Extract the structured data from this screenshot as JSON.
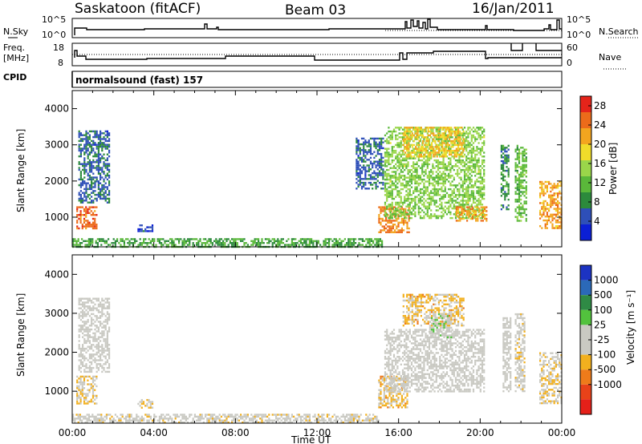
{
  "header": {
    "station": "Saskatoon (fitACF)",
    "beam": "Beam 03",
    "date": "16/Jan/2011"
  },
  "strips": {
    "nsky_label": "N.Sky",
    "nsearch_label": "N.Search",
    "nsky_ticks": [
      "10^5",
      "10^0"
    ],
    "nsearch_ticks": [
      "10^5",
      "10^0"
    ],
    "freq_label_1": "Freq.",
    "freq_label_2": "[MHz]",
    "freq_ticks": [
      "18",
      "8"
    ],
    "nave_label": "Nave",
    "nave_ticks": [
      "60",
      "0"
    ],
    "cpid_label": "CPID",
    "cpid_text": "normalsound (fast) 157"
  },
  "colors": {
    "power_scale": [
      "#0b1fd6",
      "#2e4fb8",
      "#2c8a3c",
      "#5ab83a",
      "#9ad64a",
      "#f0dc2a",
      "#f3a51f",
      "#ec6b1a",
      "#e5241a"
    ],
    "velocity_scale": [
      "#1c33c2",
      "#2b69b8",
      "#2f8a45",
      "#52c23d",
      "#c9c9c2",
      "#c9c9c2",
      "#f2b01e",
      "#ee7b1a",
      "#e84219",
      "#e52019"
    ]
  },
  "chart_data": [
    {
      "type": "heatmap",
      "name": "power",
      "ylabel": "Slant Range [km]",
      "ylim": [
        180,
        4500
      ],
      "yticks": [
        "1000",
        "2000",
        "3000",
        "4000"
      ],
      "xlim": [
        "00:00",
        "24:00"
      ],
      "colorbar_label": "Power [dB]",
      "colorbar_ticks": [
        "4",
        "8",
        "12",
        "16",
        "20",
        "24",
        "28"
      ],
      "colorbar_range": [
        0,
        30
      ],
      "regions": [
        {
          "t_start": 0.2,
          "t_end": 1.2,
          "r_start": 700,
          "r_end": 1300,
          "value": 25
        },
        {
          "t_start": 0.3,
          "t_end": 1.8,
          "r_start": 1400,
          "r_end": 3400,
          "value": 6
        },
        {
          "t_start": 3.2,
          "t_end": 3.9,
          "r_start": 600,
          "r_end": 800,
          "value": 5
        },
        {
          "t_start": 0,
          "t_end": 15.2,
          "r_start": 180,
          "r_end": 420,
          "value": 10
        },
        {
          "t_start": 13.9,
          "t_end": 15.2,
          "r_start": 1800,
          "r_end": 3200,
          "value": 6
        },
        {
          "t_start": 15.0,
          "t_end": 16.5,
          "r_start": 600,
          "r_end": 1300,
          "value": 24
        },
        {
          "t_start": 15.3,
          "t_end": 20.2,
          "r_start": 1000,
          "r_end": 3500,
          "value": 14
        },
        {
          "t_start": 16.2,
          "t_end": 19.2,
          "r_start": 2700,
          "r_end": 3500,
          "value": 20
        },
        {
          "t_start": 18.8,
          "t_end": 20.3,
          "r_start": 900,
          "r_end": 1300,
          "value": 22
        },
        {
          "t_start": 21.0,
          "t_end": 21.4,
          "r_start": 1200,
          "r_end": 3000,
          "value": 8
        },
        {
          "t_start": 21.7,
          "t_end": 22.3,
          "r_start": 900,
          "r_end": 3000,
          "value": 12
        },
        {
          "t_start": 22.9,
          "t_end": 24.0,
          "r_start": 700,
          "r_end": 2000,
          "value": 22
        }
      ]
    },
    {
      "type": "heatmap",
      "name": "velocity",
      "ylabel": "Slant Range [km]",
      "ylim": [
        180,
        4500
      ],
      "yticks": [
        "1000",
        "2000",
        "3000",
        "4000"
      ],
      "xlabel": "Time UT",
      "xticks": [
        "00:00",
        "04:00",
        "08:00",
        "12:00",
        "16:00",
        "20:00",
        "00:00"
      ],
      "xlim": [
        "00:00",
        "24:00"
      ],
      "colorbar_label": "Velocity [m s⁻¹]",
      "colorbar_ticks": [
        "1000",
        "500",
        "100",
        "25",
        "-25",
        "-100",
        "-500",
        "-1000"
      ],
      "colorbar_range": [
        -1250,
        1250
      ],
      "regions": [
        {
          "t_start": 0.2,
          "t_end": 1.2,
          "r_start": 700,
          "r_end": 1400,
          "value": -200
        },
        {
          "t_start": 0.3,
          "t_end": 1.8,
          "r_start": 1500,
          "r_end": 3400,
          "value": 0
        },
        {
          "t_start": 3.2,
          "t_end": 3.9,
          "r_start": 600,
          "r_end": 800,
          "value": -150
        },
        {
          "t_start": 0,
          "t_end": 15.0,
          "r_start": 180,
          "r_end": 420,
          "value": -80
        },
        {
          "t_start": 15.0,
          "t_end": 16.4,
          "r_start": 600,
          "r_end": 1400,
          "value": -300
        },
        {
          "t_start": 15.3,
          "t_end": 20.2,
          "r_start": 1000,
          "r_end": 2600,
          "value": 0
        },
        {
          "t_start": 16.2,
          "t_end": 19.2,
          "r_start": 2700,
          "r_end": 3500,
          "value": -300
        },
        {
          "t_start": 17.5,
          "t_end": 18.6,
          "r_start": 2400,
          "r_end": 3000,
          "value": 150
        },
        {
          "t_start": 21.1,
          "t_end": 21.5,
          "r_start": 1000,
          "r_end": 2900,
          "value": 0
        },
        {
          "t_start": 21.7,
          "t_end": 22.2,
          "r_start": 1000,
          "r_end": 3000,
          "value": -100
        },
        {
          "t_start": 22.9,
          "t_end": 24.0,
          "r_start": 700,
          "r_end": 2000,
          "value": -200
        }
      ]
    }
  ]
}
